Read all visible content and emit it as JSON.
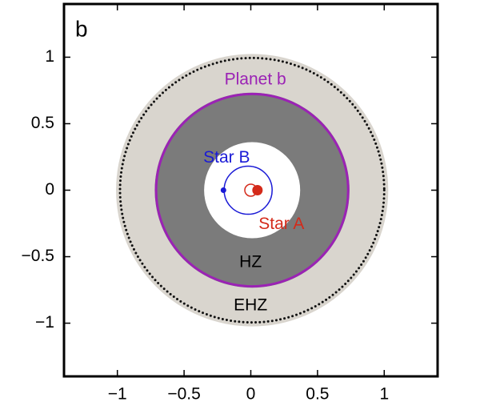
{
  "chart_data": {
    "type": "orbits",
    "panel_label": "b",
    "xlim": [
      -1.4,
      1.4
    ],
    "ylim": [
      -1.4,
      1.4
    ],
    "xticks": [
      {
        "value": -1,
        "label": "−1"
      },
      {
        "value": -0.5,
        "label": "−0.5"
      },
      0,
      0.5,
      1
    ],
    "yticks": [
      {
        "value": -1,
        "label": "−1"
      },
      {
        "value": -0.5,
        "label": "−0.5"
      },
      0,
      0.5,
      1
    ],
    "zones": [
      {
        "name": "EHZ",
        "color": "#d9d5ce",
        "r": 1.02,
        "cx": 0.01,
        "cy": 0
      },
      {
        "name": "HZ",
        "color": "#7b7b7b",
        "r": 0.73,
        "cx": 0.01,
        "cy": 0
      },
      {
        "color": "#ffffff",
        "r": 0.36,
        "cx": 0.01,
        "cy": 0
      }
    ],
    "orbits": [
      {
        "color": "#111111",
        "r": 0.99,
        "cx": 0.01,
        "cy": 0,
        "dotted": true
      },
      {
        "name": "Planet b",
        "color": "#9b22b5",
        "r": 0.72,
        "cx": 0.01,
        "cy": 0
      },
      {
        "color": "#1a1ad6",
        "r": 0.18,
        "cx": -0.02,
        "cy": 0
      },
      {
        "color": "#d42a1a",
        "r": 0.045,
        "cx": 0.0,
        "cy": 0
      }
    ],
    "stars": [
      {
        "name": "Star B",
        "color": "#1a1ad6",
        "x": -0.205,
        "y": 0
      },
      {
        "name": "Star A",
        "color": "#d42a1a",
        "x": 0.05,
        "y": 0
      }
    ]
  }
}
